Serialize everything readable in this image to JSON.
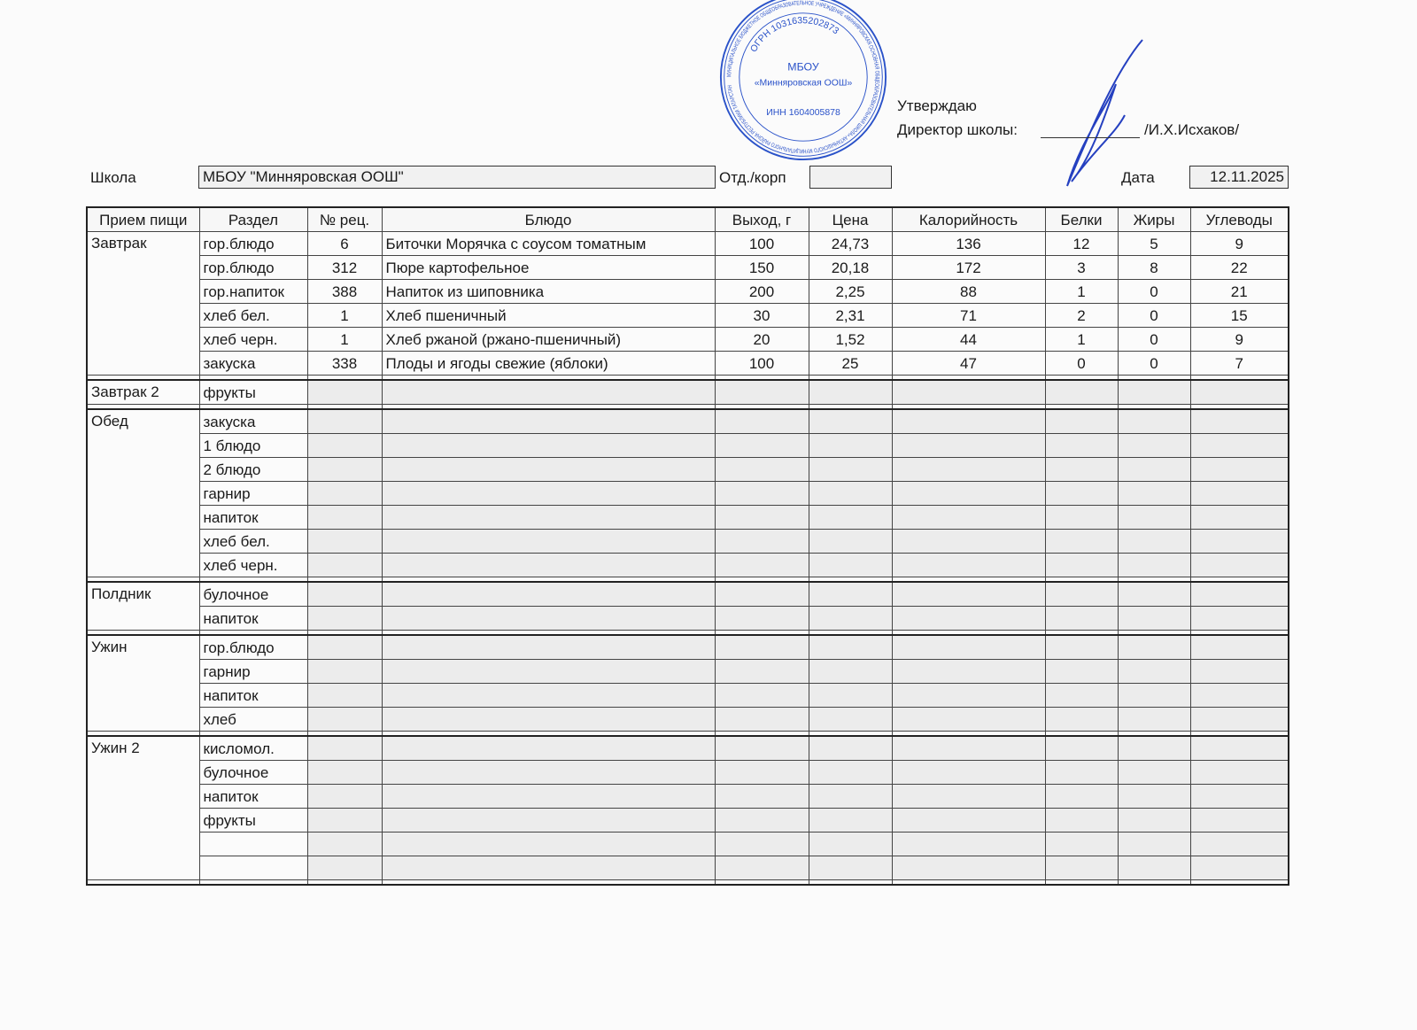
{
  "approval": {
    "approve": "Утверждаю",
    "director_label": "Директор школы:",
    "director_name": "/И.Х.Исхаков/"
  },
  "stamp": {
    "outer_text": "МУНИЦИПАЛЬНОЕ БЮДЖЕТНОЕ ОБЩЕОБРАЗОВАТЕЛЬНОЕ УЧРЕЖДЕНИЕ «МИННЯРОВСКАЯ ОСНОВНАЯ ОБЩЕОБРАЗОВАТЕЛЬНАЯ ШКОЛА» АКТАНЫШСКОГО МУНИЦИПАЛЬНОГО РАЙОНА РЕСПУБЛИКИ ТАТАРСТАН",
    "ogrn": "ОГРН 1031635202873",
    "inn": "ИНН 1604005878",
    "center1": "МБОУ",
    "center2": "«Минняровская ООШ»",
    "color": "#2a52c9"
  },
  "header": {
    "school_label": "Школа",
    "school_value": "МБОУ \"Минняровская ООШ\"",
    "dept_label": "Отд./корп",
    "dept_value": "",
    "date_label": "Дата",
    "date_value": "12.11.2025"
  },
  "columns": [
    "Прием пищи",
    "Раздел",
    "№ рец.",
    "Блюдо",
    "Выход, г",
    "Цена",
    "Калорийность",
    "Белки",
    "Жиры",
    "Углеводы"
  ],
  "meals": [
    {
      "name": "Завтрак",
      "rows": [
        {
          "section": "гор.блюдо",
          "recipe": "6",
          "dish": "Биточки Морячка с соусом томатным",
          "yield": "100",
          "price": "24,73",
          "kcal": "136",
          "protein": "12",
          "fat": "5",
          "carbs": "9"
        },
        {
          "section": "гор.блюдо",
          "recipe": "312",
          "dish": "Пюре картофельное",
          "yield": "150",
          "price": "20,18",
          "kcal": "172",
          "protein": "3",
          "fat": "8",
          "carbs": "22"
        },
        {
          "section": "гор.напиток",
          "recipe": "388",
          "dish": "Напиток из шиповника",
          "yield": "200",
          "price": "2,25",
          "kcal": "88",
          "protein": "1",
          "fat": "0",
          "carbs": "21"
        },
        {
          "section": "хлеб бел.",
          "recipe": "1",
          "dish": "Хлеб пшеничный",
          "yield": "30",
          "price": "2,31",
          "kcal": "71",
          "protein": "2",
          "fat": "0",
          "carbs": "15"
        },
        {
          "section": "хлеб черн.",
          "recipe": "1",
          "dish": "Хлеб ржаной (ржано-пшеничный)",
          "yield": "20",
          "price": "1,52",
          "kcal": "44",
          "protein": "1",
          "fat": "0",
          "carbs": "9"
        },
        {
          "section": "закуска",
          "recipe": "338",
          "dish": "Плоды и ягоды свежие (яблоки)",
          "yield": "100",
          "price": "25",
          "kcal": "47",
          "protein": "0",
          "fat": "0",
          "carbs": "7"
        }
      ]
    },
    {
      "name": "Завтрак 2",
      "rows": [
        {
          "section": "фрукты"
        }
      ]
    },
    {
      "name": "Обед",
      "rows": [
        {
          "section": "закуска"
        },
        {
          "section": "1 блюдо"
        },
        {
          "section": "2 блюдо"
        },
        {
          "section": "гарнир"
        },
        {
          "section": "напиток"
        },
        {
          "section": "хлеб бел."
        },
        {
          "section": "хлеб черн."
        }
      ]
    },
    {
      "name": "Полдник",
      "rows": [
        {
          "section": "булочное"
        },
        {
          "section": "напиток"
        }
      ]
    },
    {
      "name": "Ужин",
      "rows": [
        {
          "section": "гор.блюдо"
        },
        {
          "section": "гарнир"
        },
        {
          "section": "напиток"
        },
        {
          "section": "хлеб"
        }
      ]
    },
    {
      "name": "Ужин 2",
      "rows": [
        {
          "section": "кисломол."
        },
        {
          "section": "булочное"
        },
        {
          "section": "напиток"
        },
        {
          "section": "фрукты"
        },
        {
          "section": ""
        },
        {
          "section": ""
        }
      ]
    }
  ]
}
